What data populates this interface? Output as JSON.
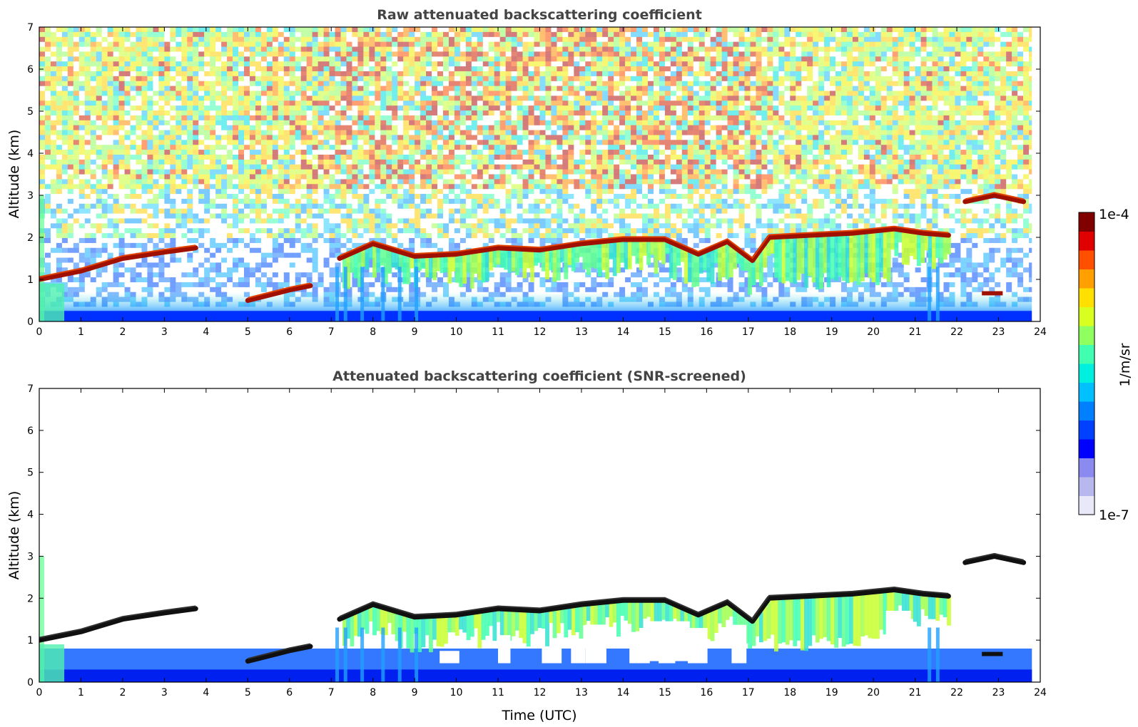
{
  "chart_data": [
    {
      "type": "heatmap",
      "title": "Raw attenuated backscattering coefficient",
      "xlabel": "",
      "ylabel": "Altitude (km)",
      "xlim": [
        0,
        24
      ],
      "ylim": [
        0,
        7
      ],
      "xticks": [
        "0",
        "1",
        "2",
        "3",
        "4",
        "5",
        "6",
        "7",
        "8",
        "9",
        "10",
        "11",
        "12",
        "13",
        "14",
        "15",
        "16",
        "17",
        "18",
        "19",
        "20",
        "21",
        "22",
        "23",
        "24"
      ],
      "yticks": [
        "0",
        "1",
        "2",
        "3",
        "4",
        "5",
        "6",
        "7"
      ],
      "features": {
        "cloud_layer_base_km": [
          {
            "t": 0.0,
            "z": 1.0
          },
          {
            "t": 1.0,
            "z": 1.2
          },
          {
            "t": 2.0,
            "z": 1.5
          },
          {
            "t": 3.0,
            "z": 1.65
          },
          {
            "t": 3.75,
            "z": 1.75
          },
          {
            "t": 5.0,
            "z": 0.5
          },
          {
            "t": 6.0,
            "z": 0.75
          },
          {
            "t": 6.5,
            "z": 0.85
          },
          {
            "t": 7.2,
            "z": 1.5
          },
          {
            "t": 8.0,
            "z": 1.85
          },
          {
            "t": 9.0,
            "z": 1.55
          },
          {
            "t": 10.0,
            "z": 1.6
          },
          {
            "t": 11.0,
            "z": 1.75
          },
          {
            "t": 12.0,
            "z": 1.7
          },
          {
            "t": 13.0,
            "z": 1.85
          },
          {
            "t": 14.0,
            "z": 1.95
          },
          {
            "t": 15.0,
            "z": 1.95
          },
          {
            "t": 15.8,
            "z": 1.6
          },
          {
            "t": 16.5,
            "z": 1.9
          },
          {
            "t": 17.1,
            "z": 1.45
          },
          {
            "t": 17.5,
            "z": 2.0
          },
          {
            "t": 18.5,
            "z": 2.05
          },
          {
            "t": 19.5,
            "z": 2.1
          },
          {
            "t": 20.5,
            "z": 2.2
          },
          {
            "t": 21.2,
            "z": 2.1
          },
          {
            "t": 21.8,
            "z": 2.05
          },
          {
            "t": 22.2,
            "z": 2.85
          },
          {
            "t": 22.9,
            "z": 3.0
          },
          {
            "t": 23.6,
            "z": 2.85
          },
          {
            "t": 22.8,
            "z": 0.65
          }
        ]
      }
    },
    {
      "type": "heatmap",
      "title": "Attenuated backscattering coefficient (SNR-screened)",
      "xlabel": "Time (UTC)",
      "ylabel": "Altitude (km)",
      "xlim": [
        0,
        24
      ],
      "ylim": [
        0,
        7
      ],
      "xticks": [
        "0",
        "1",
        "2",
        "3",
        "4",
        "5",
        "6",
        "7",
        "8",
        "9",
        "10",
        "11",
        "12",
        "13",
        "14",
        "15",
        "16",
        "17",
        "18",
        "19",
        "20",
        "21",
        "22",
        "23",
        "24"
      ],
      "yticks": [
        "0",
        "1",
        "2",
        "3",
        "4",
        "5",
        "6",
        "7"
      ]
    }
  ],
  "colorbar": {
    "label": "1/m/sr",
    "max_label": "1e-4",
    "min_label": "1e-7",
    "colors": [
      "#e8e8f8",
      "#b8b8ee",
      "#8a8af0",
      "#0000ff",
      "#0040ff",
      "#0080ff",
      "#00c0ff",
      "#00f0e0",
      "#40ffb0",
      "#90ff60",
      "#d8ff20",
      "#ffe000",
      "#ffa000",
      "#ff5000",
      "#e00000",
      "#800000"
    ]
  }
}
